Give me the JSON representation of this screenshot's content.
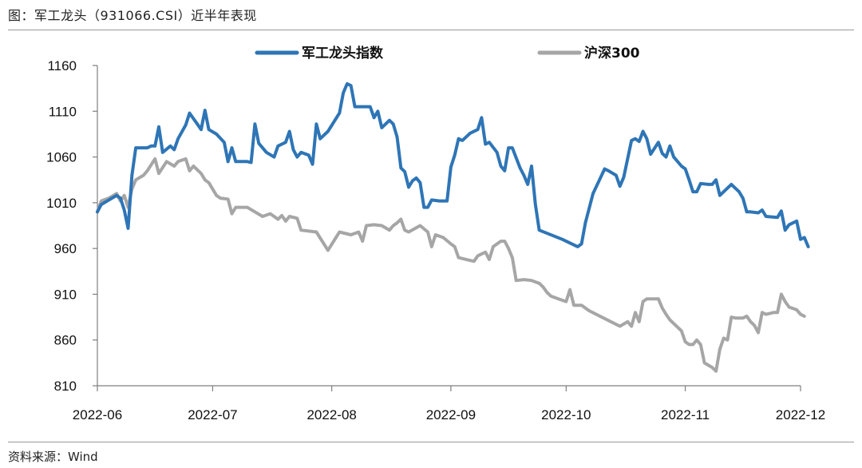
{
  "figure": {
    "title": "图：军工龙头（931066.CSI）近半年表现",
    "source": "资料来源：Wind"
  },
  "colors": {
    "series1": "#2e75b6",
    "series2": "#a6a6a6",
    "axis": "#7f7f7f"
  },
  "chart_data": {
    "type": "line",
    "title": "",
    "xlabel": "",
    "ylabel": "",
    "ylim": [
      810,
      1160
    ],
    "y_ticks": [
      "1160",
      "1110",
      "1060",
      "1010",
      "960",
      "910",
      "860",
      "810"
    ],
    "x_range": [
      "2022-06-01",
      "2022-12-01"
    ],
    "x_ticks": [
      "2022-06",
      "2022-07",
      "2022-08",
      "2022-09",
      "2022-10",
      "2022-11",
      "2022-12"
    ],
    "grid": false,
    "legend": "top",
    "series": [
      {
        "name": "军工龙头指数",
        "points": [
          [
            "2022-06-01",
            1000
          ],
          [
            "2022-06-02",
            1008
          ],
          [
            "2022-06-06",
            1018
          ],
          [
            "2022-06-07",
            1015
          ],
          [
            "2022-06-08",
            1002
          ],
          [
            "2022-06-09",
            982
          ],
          [
            "2022-06-10",
            1040
          ],
          [
            "2022-06-11",
            1070
          ],
          [
            "2022-06-14",
            1070
          ],
          [
            "2022-06-15",
            1072
          ],
          [
            "2022-06-16",
            1072
          ],
          [
            "2022-06-17",
            1093
          ],
          [
            "2022-06-18",
            1065
          ],
          [
            "2022-06-20",
            1072
          ],
          [
            "2022-06-21",
            1068
          ],
          [
            "2022-06-22",
            1080
          ],
          [
            "2022-06-24",
            1095
          ],
          [
            "2022-06-25",
            1108
          ],
          [
            "2022-06-27",
            1096
          ],
          [
            "2022-06-28",
            1090
          ],
          [
            "2022-06-29",
            1111
          ],
          [
            "2022-06-30",
            1090
          ],
          [
            "2022-07-02",
            1085
          ],
          [
            "2022-07-04",
            1076
          ],
          [
            "2022-07-05",
            1055
          ],
          [
            "2022-07-06",
            1070
          ],
          [
            "2022-07-07",
            1055
          ],
          [
            "2022-07-08",
            1055
          ],
          [
            "2022-07-10",
            1055
          ],
          [
            "2022-07-11",
            1054
          ],
          [
            "2022-07-12",
            1096
          ],
          [
            "2022-07-13",
            1075
          ],
          [
            "2022-07-15",
            1065
          ],
          [
            "2022-07-17",
            1060
          ],
          [
            "2022-07-18",
            1072
          ],
          [
            "2022-07-20",
            1076
          ],
          [
            "2022-07-21",
            1088
          ],
          [
            "2022-07-22",
            1068
          ],
          [
            "2022-07-23",
            1060
          ],
          [
            "2022-07-24",
            1065
          ],
          [
            "2022-07-26",
            1062
          ],
          [
            "2022-07-27",
            1052
          ],
          [
            "2022-07-28",
            1096
          ],
          [
            "2022-07-29",
            1080
          ],
          [
            "2022-07-31",
            1088
          ],
          [
            "2022-08-03",
            1108
          ],
          [
            "2022-08-04",
            1130
          ],
          [
            "2022-08-05",
            1140
          ],
          [
            "2022-08-06",
            1138
          ],
          [
            "2022-08-07",
            1115
          ],
          [
            "2022-08-09",
            1115
          ],
          [
            "2022-08-11",
            1115
          ],
          [
            "2022-08-12",
            1103
          ],
          [
            "2022-08-13",
            1110
          ],
          [
            "2022-08-14",
            1092
          ],
          [
            "2022-08-16",
            1100
          ],
          [
            "2022-08-17",
            1096
          ],
          [
            "2022-08-18",
            1082
          ],
          [
            "2022-08-19",
            1048
          ],
          [
            "2022-08-20",
            1044
          ],
          [
            "2022-08-21",
            1027
          ],
          [
            "2022-08-22",
            1034
          ],
          [
            "2022-08-23",
            1037
          ],
          [
            "2022-08-24",
            1032
          ],
          [
            "2022-08-25",
            1005
          ],
          [
            "2022-08-26",
            1005
          ],
          [
            "2022-08-27",
            1013
          ],
          [
            "2022-08-29",
            1012
          ],
          [
            "2022-08-31",
            1012
          ],
          [
            "2022-09-01",
            1049
          ],
          [
            "2022-09-02",
            1062
          ],
          [
            "2022-09-03",
            1080
          ],
          [
            "2022-09-04",
            1078
          ],
          [
            "2022-09-06",
            1086
          ],
          [
            "2022-09-08",
            1090
          ],
          [
            "2022-09-09",
            1103
          ],
          [
            "2022-09-10",
            1074
          ],
          [
            "2022-09-11",
            1076
          ],
          [
            "2022-09-13",
            1065
          ],
          [
            "2022-09-14",
            1050
          ],
          [
            "2022-09-15",
            1045
          ],
          [
            "2022-09-16",
            1070
          ],
          [
            "2022-09-17",
            1070
          ],
          [
            "2022-09-19",
            1048
          ],
          [
            "2022-09-20",
            1040
          ],
          [
            "2022-09-21",
            1030
          ],
          [
            "2022-09-22",
            1050
          ],
          [
            "2022-09-23",
            1008
          ],
          [
            "2022-09-24",
            980
          ],
          [
            "2022-09-30",
            970
          ],
          [
            "2022-10-04",
            962
          ],
          [
            "2022-10-05",
            965
          ],
          [
            "2022-10-06",
            988
          ],
          [
            "2022-10-08",
            1020
          ],
          [
            "2022-10-10",
            1038
          ],
          [
            "2022-10-11",
            1047
          ],
          [
            "2022-10-12",
            1045
          ],
          [
            "2022-10-14",
            1040
          ],
          [
            "2022-10-15",
            1028
          ],
          [
            "2022-10-16",
            1038
          ],
          [
            "2022-10-18",
            1078
          ],
          [
            "2022-10-19",
            1080
          ],
          [
            "2022-10-20",
            1077
          ],
          [
            "2022-10-21",
            1088
          ],
          [
            "2022-10-22",
            1080
          ],
          [
            "2022-10-23",
            1063
          ],
          [
            "2022-10-25",
            1076
          ],
          [
            "2022-10-26",
            1064
          ],
          [
            "2022-10-27",
            1060
          ],
          [
            "2022-10-28",
            1072
          ],
          [
            "2022-10-29",
            1060
          ],
          [
            "2022-10-31",
            1050
          ],
          [
            "2022-11-01",
            1047
          ],
          [
            "2022-11-02",
            1035
          ],
          [
            "2022-11-03",
            1022
          ],
          [
            "2022-11-04",
            1022
          ],
          [
            "2022-11-05",
            1031
          ],
          [
            "2022-11-07",
            1030
          ],
          [
            "2022-11-08",
            1030
          ],
          [
            "2022-11-09",
            1035
          ],
          [
            "2022-11-10",
            1018
          ],
          [
            "2022-11-11",
            1022
          ],
          [
            "2022-11-13",
            1030
          ],
          [
            "2022-11-15",
            1022
          ],
          [
            "2022-11-16",
            1015
          ],
          [
            "2022-11-17",
            1000
          ],
          [
            "2022-11-18",
            1000
          ],
          [
            "2022-11-20",
            999
          ],
          [
            "2022-11-21",
            1002
          ],
          [
            "2022-11-22",
            995
          ],
          [
            "2022-11-25",
            994
          ],
          [
            "2022-11-26",
            1001
          ],
          [
            "2022-11-27",
            980
          ],
          [
            "2022-11-28",
            986
          ],
          [
            "2022-11-30",
            990
          ],
          [
            "2022-12-01",
            970
          ],
          [
            "2022-12-02",
            972
          ],
          [
            "2022-12-03",
            962
          ]
        ]
      },
      {
        "name": "沪深300",
        "points": [
          [
            "2022-06-01",
            1000
          ],
          [
            "2022-06-02",
            1012
          ],
          [
            "2022-06-04",
            1015
          ],
          [
            "2022-06-06",
            1020
          ],
          [
            "2022-06-07",
            1012
          ],
          [
            "2022-06-08",
            1018
          ],
          [
            "2022-06-09",
            1005
          ],
          [
            "2022-06-10",
            1025
          ],
          [
            "2022-06-11",
            1035
          ],
          [
            "2022-06-13",
            1040
          ],
          [
            "2022-06-14",
            1045
          ],
          [
            "2022-06-16",
            1058
          ],
          [
            "2022-06-17",
            1042
          ],
          [
            "2022-06-19",
            1055
          ],
          [
            "2022-06-21",
            1050
          ],
          [
            "2022-06-22",
            1055
          ],
          [
            "2022-06-24",
            1058
          ],
          [
            "2022-06-25",
            1045
          ],
          [
            "2022-06-26",
            1050
          ],
          [
            "2022-06-28",
            1042
          ],
          [
            "2022-06-29",
            1035
          ],
          [
            "2022-06-30",
            1032
          ],
          [
            "2022-07-02",
            1018
          ],
          [
            "2022-07-03",
            1015
          ],
          [
            "2022-07-05",
            1014
          ],
          [
            "2022-07-06",
            998
          ],
          [
            "2022-07-07",
            1005
          ],
          [
            "2022-07-10",
            1005
          ],
          [
            "2022-07-12",
            1000
          ],
          [
            "2022-07-14",
            995
          ],
          [
            "2022-07-16",
            998
          ],
          [
            "2022-07-18",
            992
          ],
          [
            "2022-07-19",
            996
          ],
          [
            "2022-07-20",
            990
          ],
          [
            "2022-07-21",
            995
          ],
          [
            "2022-07-23",
            993
          ],
          [
            "2022-07-24",
            980
          ],
          [
            "2022-07-28",
            978
          ],
          [
            "2022-07-31",
            958
          ],
          [
            "2022-08-03",
            978
          ],
          [
            "2022-08-06",
            975
          ],
          [
            "2022-08-08",
            978
          ],
          [
            "2022-08-09",
            968
          ],
          [
            "2022-08-10",
            985
          ],
          [
            "2022-08-12",
            986
          ],
          [
            "2022-08-14",
            985
          ],
          [
            "2022-08-16",
            980
          ],
          [
            "2022-08-17",
            985
          ],
          [
            "2022-08-18",
            988
          ],
          [
            "2022-08-19",
            992
          ],
          [
            "2022-08-20",
            980
          ],
          [
            "2022-08-21",
            978
          ],
          [
            "2022-08-24",
            985
          ],
          [
            "2022-08-26",
            978
          ],
          [
            "2022-08-27",
            962
          ],
          [
            "2022-08-28",
            975
          ],
          [
            "2022-08-30",
            972
          ],
          [
            "2022-09-01",
            965
          ],
          [
            "2022-09-02",
            962
          ],
          [
            "2022-09-03",
            950
          ],
          [
            "2022-09-05",
            948
          ],
          [
            "2022-09-07",
            946
          ],
          [
            "2022-09-08",
            952
          ],
          [
            "2022-09-10",
            956
          ],
          [
            "2022-09-11",
            948
          ],
          [
            "2022-09-12",
            962
          ],
          [
            "2022-09-14",
            968
          ],
          [
            "2022-09-15",
            968
          ],
          [
            "2022-09-16",
            960
          ],
          [
            "2022-09-17",
            950
          ],
          [
            "2022-09-18",
            925
          ],
          [
            "2022-09-20",
            926
          ],
          [
            "2022-09-22",
            925
          ],
          [
            "2022-09-24",
            922
          ],
          [
            "2022-09-25",
            918
          ],
          [
            "2022-09-26",
            912
          ],
          [
            "2022-09-27",
            908
          ],
          [
            "2022-09-29",
            905
          ],
          [
            "2022-10-01",
            902
          ],
          [
            "2022-10-02",
            915
          ],
          [
            "2022-10-03",
            898
          ],
          [
            "2022-10-05",
            898
          ],
          [
            "2022-10-07",
            892
          ],
          [
            "2022-10-15",
            875
          ],
          [
            "2022-10-17",
            880
          ],
          [
            "2022-10-18",
            875
          ],
          [
            "2022-10-19",
            890
          ],
          [
            "2022-10-20",
            880
          ],
          [
            "2022-10-21",
            902
          ],
          [
            "2022-10-22",
            905
          ],
          [
            "2022-10-25",
            905
          ],
          [
            "2022-10-26",
            895
          ],
          [
            "2022-10-27",
            888
          ],
          [
            "2022-10-28",
            882
          ],
          [
            "2022-10-31",
            870
          ],
          [
            "2022-11-01",
            858
          ],
          [
            "2022-11-02",
            855
          ],
          [
            "2022-11-03",
            855
          ],
          [
            "2022-11-04",
            860
          ],
          [
            "2022-11-05",
            855
          ],
          [
            "2022-11-06",
            835
          ],
          [
            "2022-11-08",
            830
          ],
          [
            "2022-11-09",
            826
          ],
          [
            "2022-11-10",
            850
          ],
          [
            "2022-11-11",
            862
          ],
          [
            "2022-11-12",
            860
          ],
          [
            "2022-11-13",
            885
          ],
          [
            "2022-11-14",
            884
          ],
          [
            "2022-11-16",
            884
          ],
          [
            "2022-11-17",
            886
          ],
          [
            "2022-11-18",
            880
          ],
          [
            "2022-11-19",
            876
          ],
          [
            "2022-11-20",
            868
          ],
          [
            "2022-11-21",
            890
          ],
          [
            "2022-11-22",
            888
          ],
          [
            "2022-11-24",
            890
          ],
          [
            "2022-11-25",
            890
          ],
          [
            "2022-11-26",
            910
          ],
          [
            "2022-11-27",
            902
          ],
          [
            "2022-11-28",
            896
          ],
          [
            "2022-11-30",
            893
          ],
          [
            "2022-12-01",
            888
          ],
          [
            "2022-12-02",
            886
          ]
        ]
      }
    ]
  }
}
